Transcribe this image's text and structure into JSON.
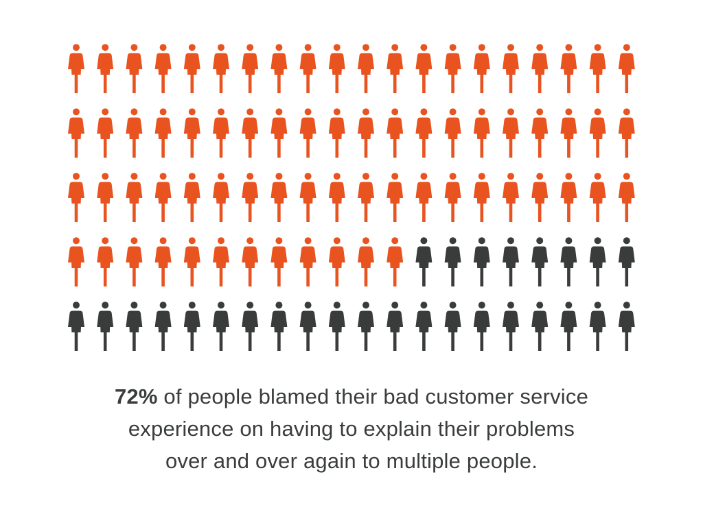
{
  "chart_data": {
    "type": "pictogram",
    "total": 100,
    "highlighted": 72,
    "rows": 5,
    "columns": 20,
    "highlight_color": "#e8531f",
    "base_color": "#393c3b",
    "icon": "person-icon"
  },
  "caption": {
    "percent": "72%",
    "line1_rest": " of people blamed their bad customer service",
    "line2": "experience on having to explain their problems",
    "line3": "over and over again to multiple people."
  }
}
